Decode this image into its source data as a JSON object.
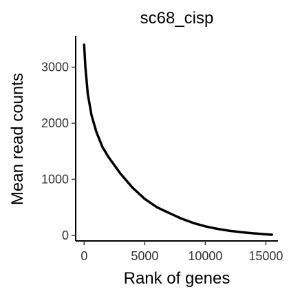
{
  "chart_data": {
    "type": "line",
    "title": "sc68_cisp",
    "xlabel": "Rank of genes",
    "ylabel": "Mean read counts",
    "xlim": [
      -700,
      16000
    ],
    "ylim": [
      -100,
      3560
    ],
    "x_ticks": [
      0,
      5000,
      10000,
      15000
    ],
    "x_tick_labels": [
      "0",
      "5000",
      "10000",
      "15000"
    ],
    "y_ticks": [
      0,
      1000,
      2000,
      3000
    ],
    "y_tick_labels": [
      "0",
      "1000",
      "2000",
      "3000"
    ],
    "grid": false,
    "legend": false,
    "series": [
      {
        "color": "#000000",
        "x": [
          0,
          100,
          300,
          600,
          1000,
          1500,
          2000,
          3000,
          4000,
          5000,
          6000,
          7000,
          8000,
          9000,
          10000,
          11000,
          12000,
          13000,
          14000,
          15000,
          15500
        ],
        "y": [
          3400,
          3000,
          2520,
          2150,
          1850,
          1580,
          1400,
          1100,
          850,
          650,
          500,
          400,
          300,
          220,
          160,
          115,
          80,
          55,
          35,
          18,
          10
        ]
      }
    ]
  }
}
